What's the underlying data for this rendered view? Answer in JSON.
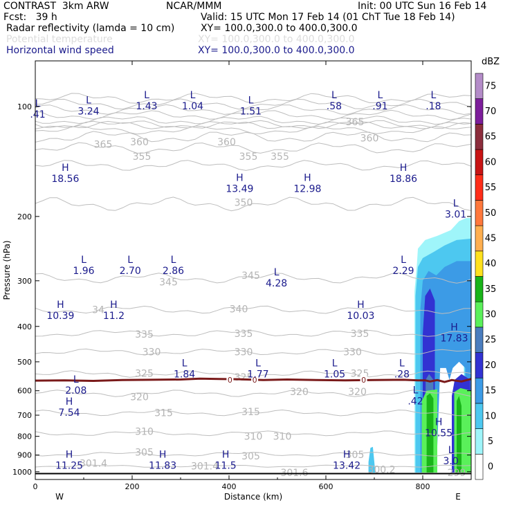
{
  "header": {
    "line1_left": "CONTRAST  3km ARW",
    "line1_mid": "NCAR/MMM",
    "line1_right": "Init: 00 UTC Sun 16 Feb 14",
    "line2_left": "Fcst:   39 h",
    "line2_right": "Valid: 15 UTC Mon 17 Feb 14 (01 ChT Tue 18 Feb 14)",
    "field1_name": "Radar reflectivity (lamda = 10 cm)",
    "field1_xy": "XY= 100.0,300.0 to 400.0,300.0",
    "field2_name": "Potential temperature",
    "field2_xy": "XY= 100.0,300.0 to 400.0,300.0",
    "field3_name": "Horizontal wind speed",
    "field3_xy": "XY= 100.0,300.0 to 400.0,300.0"
  },
  "colors": {
    "theta": "#bdbdbd",
    "wind_label": "#1a1a8c",
    "freezing_line": "#7a1a1a",
    "ground": "#000000"
  },
  "chart_data": {
    "type": "heatmap",
    "title": "",
    "xlabel": "Distance (km)",
    "ylabel": "Pressure (hPa)",
    "xlim": [
      0,
      900
    ],
    "ylim": [
      1050,
      75
    ],
    "y_scale": "log",
    "x_ticks": [
      0,
      200,
      400,
      600,
      800
    ],
    "y_ticks": [
      100,
      200,
      300,
      400,
      500,
      600,
      700,
      800,
      900,
      1000
    ],
    "x_end_labels": {
      "left": "W",
      "right": "E"
    },
    "grid": false,
    "colorbar": {
      "unit": "dBZ",
      "levels": [
        0,
        5,
        10,
        15,
        20,
        25,
        30,
        35,
        40,
        45,
        50,
        55,
        60,
        65,
        70,
        75
      ],
      "colors": [
        "#ffffff",
        "#9ff5fa",
        "#4dc8f0",
        "#3c9be6",
        "#3232d2",
        "#4b7dbe",
        "#5af05a",
        "#19b419",
        "#ffe11e",
        "#ffaf50",
        "#ff783c",
        "#ff2d19",
        "#c81414",
        "#8c2d3c",
        "#7d1e9b",
        "#b48cc8"
      ]
    },
    "theta_contour_labels": [
      {
        "x": 140,
        "p": 127,
        "text": "365"
      },
      {
        "x": 215,
        "p": 125,
        "text": "360"
      },
      {
        "x": 395,
        "p": 125,
        "text": "360"
      },
      {
        "x": 690,
        "p": 122,
        "text": "360"
      },
      {
        "x": 660,
        "p": 110,
        "text": "365"
      },
      {
        "x": 220,
        "p": 137,
        "text": "355"
      },
      {
        "x": 440,
        "p": 137,
        "text": "355"
      },
      {
        "x": 505,
        "p": 137,
        "text": "355"
      },
      {
        "x": 430,
        "p": 183,
        "text": "350"
      },
      {
        "x": 275,
        "p": 302,
        "text": "345"
      },
      {
        "x": 445,
        "p": 290,
        "text": "345"
      },
      {
        "x": 130,
        "p": 360,
        "text": "34"
      },
      {
        "x": 420,
        "p": 358,
        "text": "340"
      },
      {
        "x": 225,
        "p": 420,
        "text": "335"
      },
      {
        "x": 430,
        "p": 418,
        "text": "335"
      },
      {
        "x": 670,
        "p": 418,
        "text": "335"
      },
      {
        "x": 240,
        "p": 470,
        "text": "330"
      },
      {
        "x": 430,
        "p": 470,
        "text": "330"
      },
      {
        "x": 655,
        "p": 470,
        "text": "330"
      },
      {
        "x": 225,
        "p": 537,
        "text": "325"
      },
      {
        "x": 430,
        "p": 550,
        "text": "325"
      },
      {
        "x": 670,
        "p": 537,
        "text": "325"
      },
      {
        "x": 215,
        "p": 623,
        "text": "320"
      },
      {
        "x": 545,
        "p": 603,
        "text": "320"
      },
      {
        "x": 665,
        "p": 603,
        "text": "320"
      },
      {
        "x": 265,
        "p": 690,
        "text": "315"
      },
      {
        "x": 445,
        "p": 685,
        "text": "315"
      },
      {
        "x": 225,
        "p": 775,
        "text": "310"
      },
      {
        "x": 450,
        "p": 800,
        "text": "310"
      },
      {
        "x": 510,
        "p": 800,
        "text": "310"
      },
      {
        "x": 225,
        "p": 883,
        "text": "305"
      },
      {
        "x": 445,
        "p": 905,
        "text": "305"
      },
      {
        "x": 660,
        "p": 897,
        "text": "305"
      },
      {
        "x": 120,
        "p": 948,
        "text": "301.4"
      },
      {
        "x": 350,
        "p": 965,
        "text": "301.4"
      },
      {
        "x": 715,
        "p": 985,
        "text": "300.2"
      },
      {
        "x": 535,
        "p": 1005,
        "text": "301.6"
      },
      {
        "x": 870,
        "p": 1005,
        "text": "299"
      }
    ],
    "freezing_level_label": "0",
    "wind_extrema": [
      {
        "kind": "L",
        "x": 5,
        "p": 100,
        "value": ".41"
      },
      {
        "kind": "L",
        "x": 110,
        "p": 98,
        "value": "3.24"
      },
      {
        "kind": "L",
        "x": 230,
        "p": 95,
        "value": "1.43"
      },
      {
        "kind": "L",
        "x": 325,
        "p": 95,
        "value": "1.04"
      },
      {
        "kind": "L",
        "x": 445,
        "p": 98,
        "value": "1.51"
      },
      {
        "kind": "L",
        "x": 617,
        "p": 95,
        "value": ".58"
      },
      {
        "kind": "L",
        "x": 712,
        "p": 95,
        "value": ".91"
      },
      {
        "kind": "L",
        "x": 822,
        "p": 95,
        "value": ".18"
      },
      {
        "kind": "H",
        "x": 62,
        "p": 150,
        "value": "18.56"
      },
      {
        "kind": "H",
        "x": 422,
        "p": 160,
        "value": "13.49"
      },
      {
        "kind": "H",
        "x": 562,
        "p": 160,
        "value": "12.98"
      },
      {
        "kind": "H",
        "x": 760,
        "p": 150,
        "value": "18.86"
      },
      {
        "kind": "L",
        "x": 868,
        "p": 188,
        "value": "3.01"
      },
      {
        "kind": "L",
        "x": 100,
        "p": 268,
        "value": "1.96"
      },
      {
        "kind": "L",
        "x": 196,
        "p": 268,
        "value": "2.70"
      },
      {
        "kind": "L",
        "x": 285,
        "p": 268,
        "value": "2.86"
      },
      {
        "kind": "L",
        "x": 498,
        "p": 290,
        "value": "4.28"
      },
      {
        "kind": "L",
        "x": 760,
        "p": 268,
        "value": "2.29"
      },
      {
        "kind": "H",
        "x": 52,
        "p": 356,
        "value": "10.39"
      },
      {
        "kind": "H",
        "x": 162,
        "p": 356,
        "value": "11.2"
      },
      {
        "kind": "H",
        "x": 672,
        "p": 356,
        "value": "10.03"
      },
      {
        "kind": "H",
        "x": 865,
        "p": 410,
        "value": "17.83"
      },
      {
        "kind": "L",
        "x": 308,
        "p": 515,
        "value": "1.84"
      },
      {
        "kind": "L",
        "x": 460,
        "p": 515,
        "value": "1.77"
      },
      {
        "kind": "L",
        "x": 618,
        "p": 515,
        "value": "1.05"
      },
      {
        "kind": "L",
        "x": 757,
        "p": 515,
        "value": ".28"
      },
      {
        "kind": "L",
        "x": 84,
        "p": 570,
        "value": "2.08"
      },
      {
        "kind": "L",
        "x": 785,
        "p": 610,
        "value": ".42"
      },
      {
        "kind": "H",
        "x": 70,
        "p": 655,
        "value": "7.54"
      },
      {
        "kind": "H",
        "x": 833,
        "p": 745,
        "value": "10.55"
      },
      {
        "kind": "H",
        "x": 70,
        "p": 915,
        "value": "11.25"
      },
      {
        "kind": "H",
        "x": 263,
        "p": 915,
        "value": "11.83"
      },
      {
        "kind": "H",
        "x": 393,
        "p": 915,
        "value": "11.5"
      },
      {
        "kind": "H",
        "x": 643,
        "p": 915,
        "value": "13.42"
      },
      {
        "kind": "L",
        "x": 858,
        "p": 890,
        "value": "3.0"
      }
    ]
  }
}
